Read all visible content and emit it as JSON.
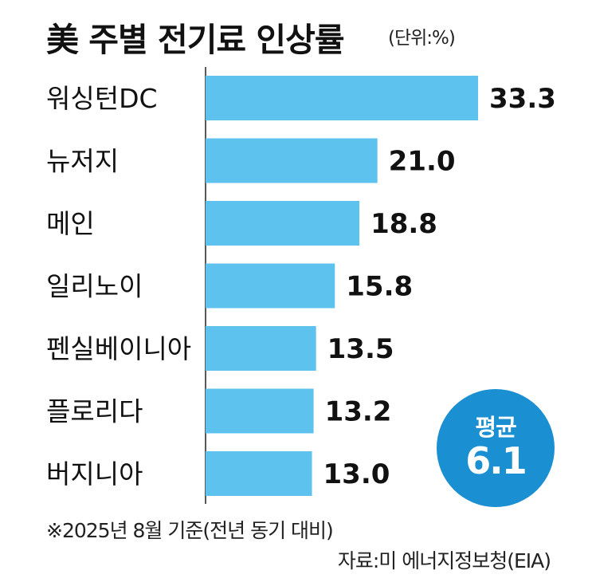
{
  "header": {
    "title": "美 주별 전기료 인상률",
    "unit": "(단위:%)"
  },
  "chart_data": {
    "type": "bar",
    "orientation": "horizontal",
    "categories": [
      "워싱턴DC",
      "뉴저지",
      "메인",
      "일리노이",
      "펜실베이니아",
      "플로리다",
      "버지니아"
    ],
    "values": [
      33.3,
      21.0,
      18.8,
      15.8,
      13.5,
      13.2,
      13.0
    ],
    "value_labels": [
      "33.3",
      "21.0",
      "18.8",
      "15.8",
      "13.5",
      "13.2",
      "13.0"
    ],
    "bar_color": "#5ec2ee",
    "xlim": [
      0,
      34
    ]
  },
  "average": {
    "label": "평균",
    "value": "6.1",
    "color": "#1a8fd1"
  },
  "footer": {
    "note": "※2025년 8월 기준(전년 동기 대비)",
    "source": "자료:미 에너지정보청(EIA)"
  }
}
